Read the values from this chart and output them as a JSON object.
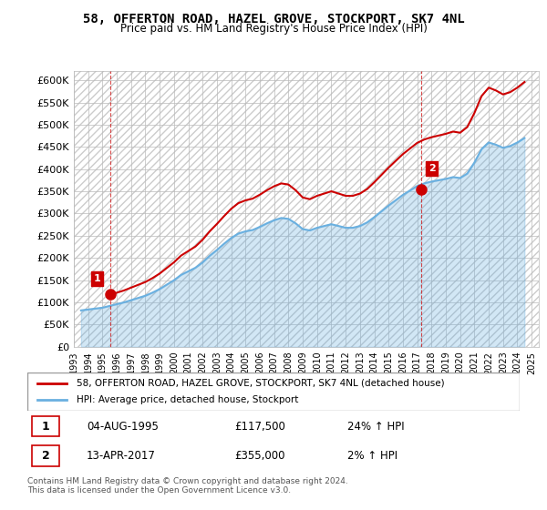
{
  "title": "58, OFFERTON ROAD, HAZEL GROVE, STOCKPORT, SK7 4NL",
  "subtitle": "Price paid vs. HM Land Registry's House Price Index (HPI)",
  "legend_line1": "58, OFFERTON ROAD, HAZEL GROVE, STOCKPORT, SK7 4NL (detached house)",
  "legend_line2": "HPI: Average price, detached house, Stockport",
  "annotation1_label": "1",
  "annotation1_date": "04-AUG-1995",
  "annotation1_price": "£117,500",
  "annotation1_hpi": "24% ↑ HPI",
  "annotation2_label": "2",
  "annotation2_date": "13-APR-2017",
  "annotation2_price": "£355,000",
  "annotation2_hpi": "2% ↑ HPI",
  "footer": "Contains HM Land Registry data © Crown copyright and database right 2024.\nThis data is licensed under the Open Government Licence v3.0.",
  "hpi_color": "#6ab0e0",
  "sale_color": "#cc0000",
  "bg_color": "#ffffff",
  "grid_color": "#cccccc",
  "hatch_color": "#dddddd",
  "ylim": [
    0,
    620000
  ],
  "yticks": [
    0,
    50000,
    100000,
    150000,
    200000,
    250000,
    300000,
    350000,
    400000,
    450000,
    500000,
    550000,
    600000
  ],
  "ytick_labels": [
    "£0",
    "£50K",
    "£100K",
    "£150K",
    "£200K",
    "£250K",
    "£300K",
    "£350K",
    "£400K",
    "£450K",
    "£500K",
    "£550K",
    "£600K"
  ],
  "xlim_start": 1993,
  "xlim_end": 2025.5,
  "xticks": [
    1993,
    1994,
    1995,
    1996,
    1997,
    1998,
    1999,
    2000,
    2001,
    2002,
    2003,
    2004,
    2005,
    2006,
    2007,
    2008,
    2009,
    2010,
    2011,
    2012,
    2013,
    2014,
    2015,
    2016,
    2017,
    2018,
    2019,
    2020,
    2021,
    2022,
    2023,
    2024,
    2025
  ],
  "hpi_x": [
    1993.5,
    1994.0,
    1994.5,
    1995.0,
    1995.5,
    1996.0,
    1996.5,
    1997.0,
    1997.5,
    1998.0,
    1998.5,
    1999.0,
    1999.5,
    2000.0,
    2000.5,
    2001.0,
    2001.5,
    2002.0,
    2002.5,
    2003.0,
    2003.5,
    2004.0,
    2004.5,
    2005.0,
    2005.5,
    2006.0,
    2006.5,
    2007.0,
    2007.5,
    2008.0,
    2008.5,
    2009.0,
    2009.5,
    2010.0,
    2010.5,
    2011.0,
    2011.5,
    2012.0,
    2012.5,
    2013.0,
    2013.5,
    2014.0,
    2014.5,
    2015.0,
    2015.5,
    2016.0,
    2016.5,
    2017.0,
    2017.5,
    2018.0,
    2018.5,
    2019.0,
    2019.5,
    2020.0,
    2020.5,
    2021.0,
    2021.5,
    2022.0,
    2022.5,
    2023.0,
    2023.5,
    2024.0,
    2024.5
  ],
  "hpi_y": [
    82000,
    84000,
    86000,
    88000,
    92000,
    96000,
    100000,
    105000,
    110000,
    115000,
    122000,
    130000,
    140000,
    150000,
    162000,
    170000,
    178000,
    190000,
    205000,
    218000,
    232000,
    245000,
    255000,
    260000,
    263000,
    270000,
    278000,
    285000,
    290000,
    288000,
    278000,
    265000,
    262000,
    268000,
    272000,
    276000,
    272000,
    268000,
    268000,
    272000,
    280000,
    292000,
    305000,
    318000,
    330000,
    342000,
    352000,
    362000,
    368000,
    372000,
    375000,
    378000,
    382000,
    380000,
    390000,
    415000,
    445000,
    460000,
    455000,
    448000,
    452000,
    460000,
    470000
  ],
  "sale1_x": 1995.58,
  "sale1_y": 117500,
  "sale2_x": 2017.28,
  "sale2_y": 355000
}
